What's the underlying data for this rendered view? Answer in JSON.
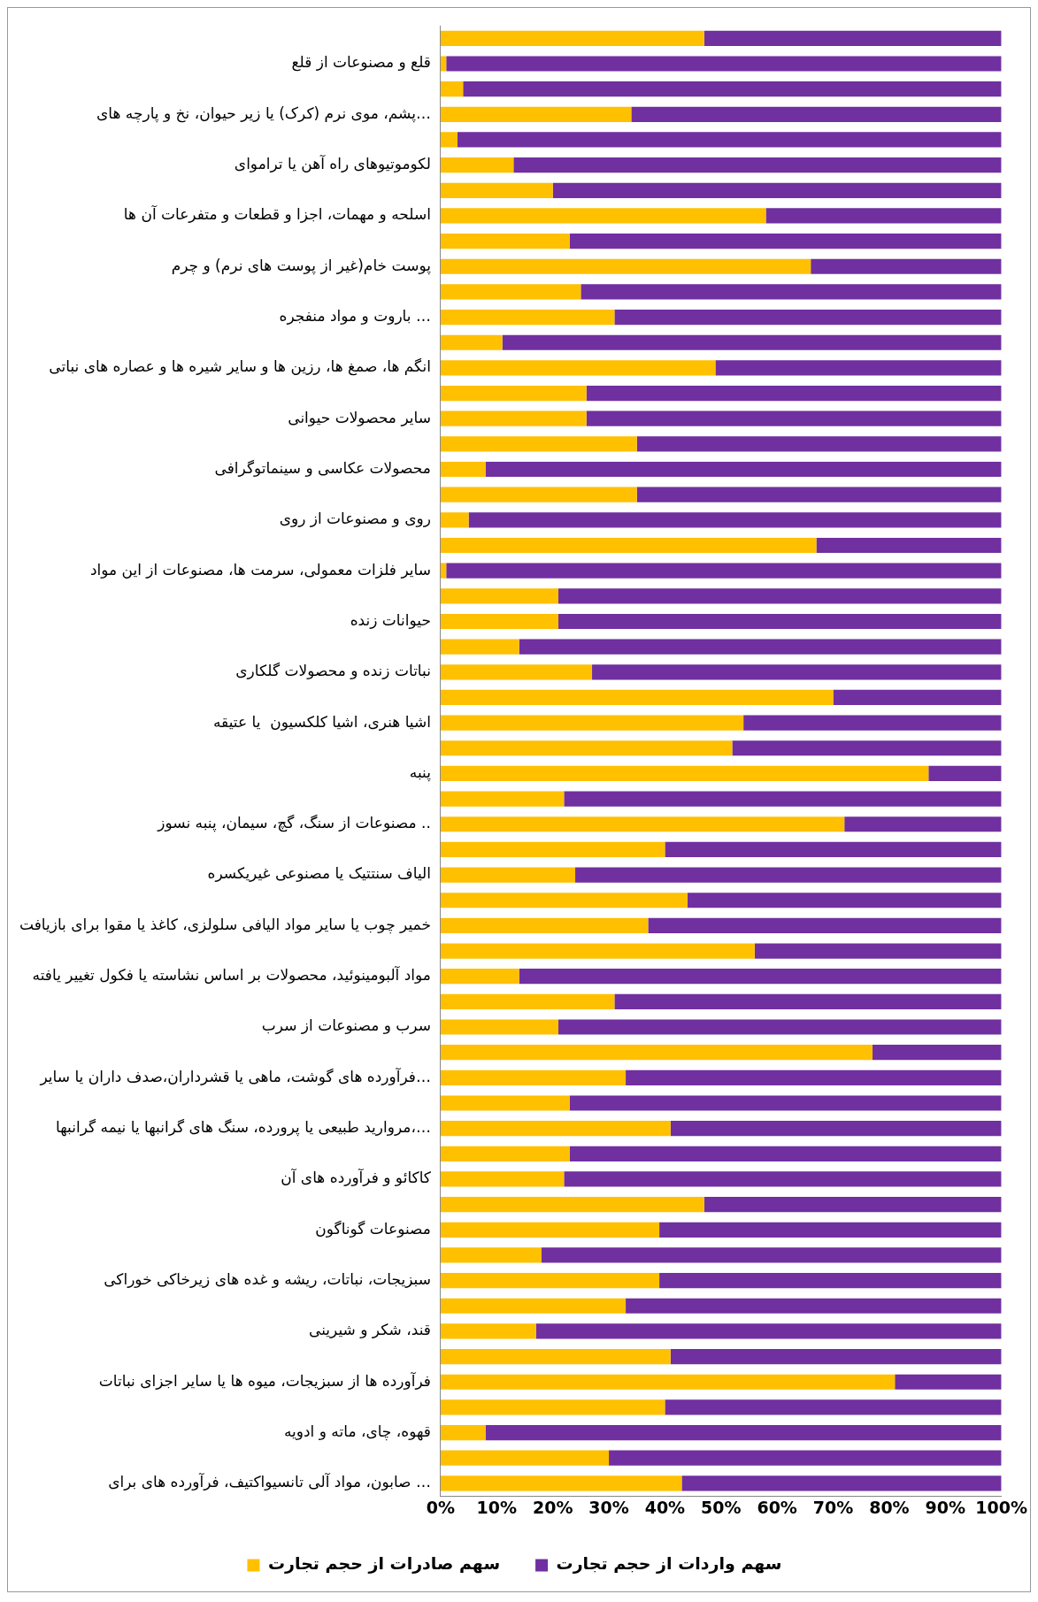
{
  "chart_data": {
    "type": "bar",
    "orientation": "horizontal",
    "stacked": true,
    "categories": [
      null,
      "قلع و مصنوعات از قلع",
      null,
      "پشم، موی نرم (کرک) یا زیر حیوان، نخ و پارچه های…",
      null,
      "لکوموتیوهای راه آهن یا تراموای",
      null,
      "اسلحه و مهمات، اجزا و قطعات و متفرعات آن ها",
      null,
      "پوست خام(غیر از پوست های نرم) و چرم",
      null,
      "باروت و مواد منفجره …",
      null,
      "انگم ها، صمغ ها، رزین ها و سایر شیره ها و عصاره های نباتی",
      null,
      "سایر محصولات حیوانی",
      null,
      "محصولات عکاسی و سینماتوگرافی",
      null,
      "روی و مصنوعات از روی",
      null,
      "سایر فلزات معمولی، سرمت ها، مصنوعات از این مواد",
      null,
      "حیوانات زنده",
      null,
      "نباتات زنده و محصولات گلکاری",
      null,
      "اشیا هنری، اشیا کلکسیون  یا عتیقه",
      null,
      "پنبه",
      null,
      "مصنوعات از سنگ، گچ، سیمان، پنبه نسوز ..",
      null,
      "الیاف سنتتیک یا مصنوعی غیریکسره",
      null,
      "خمیر چوب یا سایر مواد الیافی سلولزی، کاغذ یا مقوا برای بازیافت",
      null,
      "مواد آلبومینوئید، محصولات بر اساس نشاسته یا فکول تغییر یافته",
      null,
      "سرب و مصنوعات از سرب",
      null,
      "فرآورده های گوشت، ماهی یا قشرداران،صدف داران یا سایر…",
      null,
      "مروارید طبیعی یا پرورده، سنگ های گرانبها یا نیمه گرانبها،…",
      null,
      "کاکائو و فرآورده های آن",
      null,
      "مصنوعات گوناگون",
      null,
      "سبزیجات، نباتات، ریشه و غده های زیرخاکی خوراکی",
      null,
      "قند، شکر و شیرینی",
      null,
      "فرآورده ها از سبزیجات، میوه ها یا سایر اجزای نباتات",
      null,
      "قهوه، چای، ماته و ادویه",
      null,
      "صابون، مواد آلی تانسیواکتیف، فرآورده های برای …"
    ],
    "series": [
      {
        "name": "سهم صادرات از حجم تجارت",
        "color": "#ffc000",
        "values": [
          47,
          1,
          4,
          34,
          3,
          13,
          20,
          58,
          23,
          66,
          25,
          31,
          11,
          49,
          26,
          26,
          35,
          8,
          35,
          5,
          67,
          1,
          21,
          21,
          14,
          27,
          70,
          54,
          52,
          87,
          22,
          72,
          40,
          24,
          44,
          37,
          56,
          14,
          31,
          21,
          77,
          33,
          23,
          41,
          23,
          22,
          47,
          39,
          18,
          39,
          33,
          17,
          41,
          81,
          40,
          8,
          30,
          43
        ]
      },
      {
        "name": "سهم واردات از حجم تجارت",
        "color": "#7030a0",
        "values": [
          53,
          99,
          96,
          66,
          97,
          87,
          80,
          42,
          77,
          34,
          75,
          69,
          89,
          51,
          74,
          74,
          65,
          92,
          65,
          95,
          33,
          99,
          79,
          79,
          86,
          73,
          30,
          46,
          48,
          13,
          78,
          28,
          60,
          76,
          56,
          63,
          44,
          86,
          69,
          79,
          23,
          67,
          77,
          59,
          77,
          78,
          53,
          61,
          82,
          61,
          67,
          83,
          59,
          19,
          60,
          92,
          70,
          57
        ]
      }
    ],
    "xlim": [
      0,
      100
    ],
    "xticks": [
      {
        "value": 0,
        "label": "0%"
      },
      {
        "value": 10,
        "label": "10%"
      },
      {
        "value": 20,
        "label": "20%"
      },
      {
        "value": 30,
        "label": "30%"
      },
      {
        "value": 40,
        "label": "40%"
      },
      {
        "value": 50,
        "label": "50%"
      },
      {
        "value": 60,
        "label": "60%"
      },
      {
        "value": 70,
        "label": "70%"
      },
      {
        "value": 80,
        "label": "80%"
      },
      {
        "value": 90,
        "label": "90%"
      },
      {
        "value": 100,
        "label": "100%"
      }
    ],
    "grid": false,
    "legend": "bottom"
  }
}
